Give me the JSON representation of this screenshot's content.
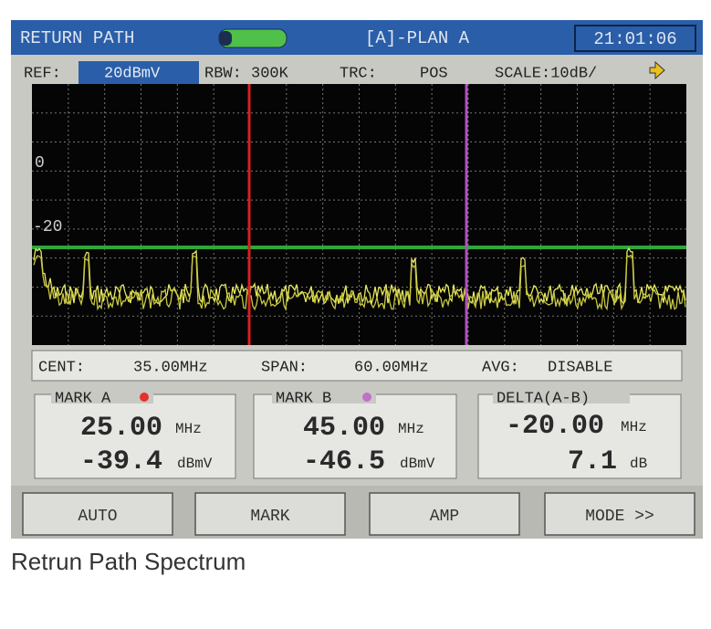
{
  "header": {
    "title": "RETURN PATH",
    "plan": "[A]-PLAN A",
    "time": "21:01:06"
  },
  "settings": {
    "ref_label": "REF:",
    "ref_value": "20dBmV",
    "rbw": "RBW: 300K",
    "trc_label": "TRC:",
    "trc_value": "POS",
    "scale": "SCALE:10dB/"
  },
  "plot": {
    "level_labels": [
      "0",
      "-20"
    ]
  },
  "status": {
    "cent_label": "CENT:",
    "cent_value": "35.00MHz",
    "span_label": "SPAN:",
    "span_value": "60.00MHz",
    "avg_label": "AVG:",
    "avg_value": "DISABLE"
  },
  "markers": [
    {
      "label": "MARK A",
      "freq": "25.00",
      "freq_unit": "MHz",
      "level": "-39.4",
      "level_unit": "dBmV"
    },
    {
      "label": "MARK B",
      "freq": "45.00",
      "freq_unit": "MHz",
      "level": "-46.5",
      "level_unit": "dBmV"
    }
  ],
  "delta": {
    "label": "DELTA(A-B)",
    "freq": "-20.00",
    "freq_unit": "MHz",
    "level": "7.1",
    "level_unit": "dB"
  },
  "buttons": [
    "AUTO",
    "MARK",
    "AMP",
    "MODE >>"
  ],
  "caption": "Retrun Path Spectrum"
}
